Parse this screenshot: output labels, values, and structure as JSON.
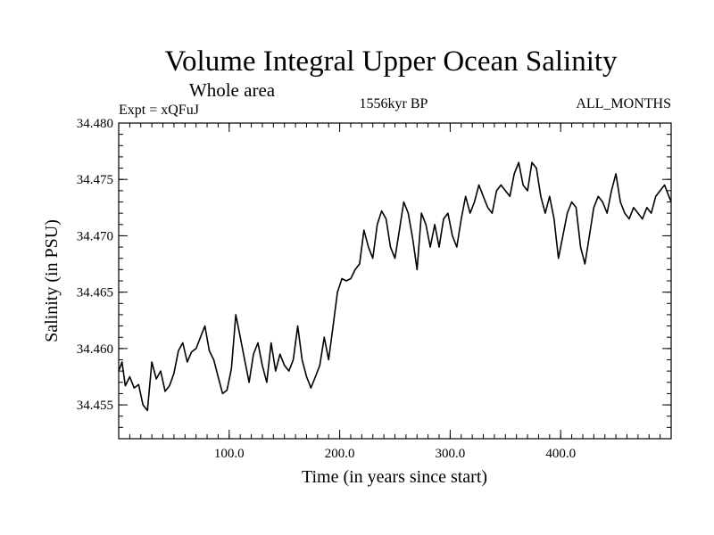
{
  "chart_data": {
    "type": "line",
    "title": "Volume Integral Upper Ocean Salinity",
    "subtitle": "Whole area",
    "experiment": "Expt = xQFuJ",
    "period": "1556kyr BP",
    "months": "ALL_MONTHS",
    "xlabel": "Time (in years since start)",
    "ylabel": "Salinity (in PSU)",
    "xlim": [
      0,
      500
    ],
    "ylim": [
      34.452,
      34.48
    ],
    "x_tick_values": [
      100,
      200,
      300,
      400
    ],
    "x_tick_labels": [
      "100.0",
      "200.0",
      "300.0",
      "400.0"
    ],
    "y_tick_values": [
      34.455,
      34.46,
      34.465,
      34.47,
      34.475,
      34.48
    ],
    "y_tick_labels": [
      "34.455",
      "34.460",
      "34.465",
      "34.470",
      "34.475",
      "34.480"
    ],
    "grid": false,
    "series": [
      {
        "name": "Salinity",
        "x": [
          0,
          3,
          6,
          10,
          14,
          18,
          22,
          26,
          30,
          34,
          38,
          42,
          46,
          50,
          54,
          58,
          62,
          66,
          70,
          74,
          78,
          82,
          86,
          90,
          94,
          98,
          102,
          106,
          110,
          114,
          118,
          122,
          126,
          130,
          134,
          138,
          142,
          146,
          150,
          154,
          158,
          162,
          166,
          170,
          174,
          178,
          182,
          186,
          190,
          194,
          198,
          202,
          206,
          210,
          214,
          218,
          222,
          226,
          230,
          234,
          238,
          242,
          246,
          250,
          254,
          258,
          262,
          266,
          270,
          274,
          278,
          282,
          286,
          290,
          294,
          298,
          302,
          306,
          310,
          314,
          318,
          322,
          326,
          330,
          334,
          338,
          342,
          346,
          350,
          354,
          358,
          362,
          366,
          370,
          374,
          378,
          382,
          386,
          390,
          394,
          398,
          402,
          406,
          410,
          414,
          418,
          422,
          426,
          430,
          434,
          438,
          442,
          446,
          450,
          454,
          458,
          462,
          466,
          470,
          474,
          478,
          482,
          486,
          490,
          494,
          498,
          500
        ],
        "values": [
          34.458,
          34.4588,
          34.4567,
          34.4575,
          34.4565,
          34.4568,
          34.455,
          34.4545,
          34.4588,
          34.4573,
          34.458,
          34.4562,
          34.4567,
          34.4578,
          34.4598,
          34.4605,
          34.4588,
          34.4597,
          34.46,
          34.461,
          34.462,
          34.4598,
          34.459,
          34.4575,
          34.456,
          34.4563,
          34.4582,
          34.463,
          34.461,
          34.459,
          34.457,
          34.4595,
          34.4605,
          34.4585,
          34.457,
          34.4605,
          34.458,
          34.4595,
          34.4585,
          34.458,
          34.459,
          34.462,
          34.459,
          34.4575,
          34.4565,
          34.4575,
          34.4585,
          34.461,
          34.459,
          34.462,
          34.465,
          34.4662,
          34.466,
          34.4662,
          34.467,
          34.4675,
          34.4705,
          34.469,
          34.468,
          34.471,
          34.4722,
          34.4715,
          34.469,
          34.468,
          34.4705,
          34.473,
          34.472,
          34.4698,
          34.467,
          34.472,
          34.471,
          34.469,
          34.471,
          34.469,
          34.4715,
          34.472,
          34.47,
          34.469,
          34.4715,
          34.4735,
          34.472,
          34.473,
          34.4745,
          34.4735,
          34.4725,
          34.472,
          34.474,
          34.4745,
          34.474,
          34.4735,
          34.4755,
          34.4765,
          34.4745,
          34.474,
          34.4765,
          34.476,
          34.4735,
          34.472,
          34.4735,
          34.4715,
          34.468,
          34.47,
          34.472,
          34.473,
          34.4725,
          34.469,
          34.4675,
          34.47,
          34.4725,
          34.4735,
          34.473,
          34.472,
          34.474,
          34.4755,
          34.473,
          34.472,
          34.4715,
          34.4725,
          34.472,
          34.4715,
          34.4725,
          34.472,
          34.4735,
          34.474,
          34.4745,
          34.4735,
          34.473
        ]
      }
    ]
  }
}
